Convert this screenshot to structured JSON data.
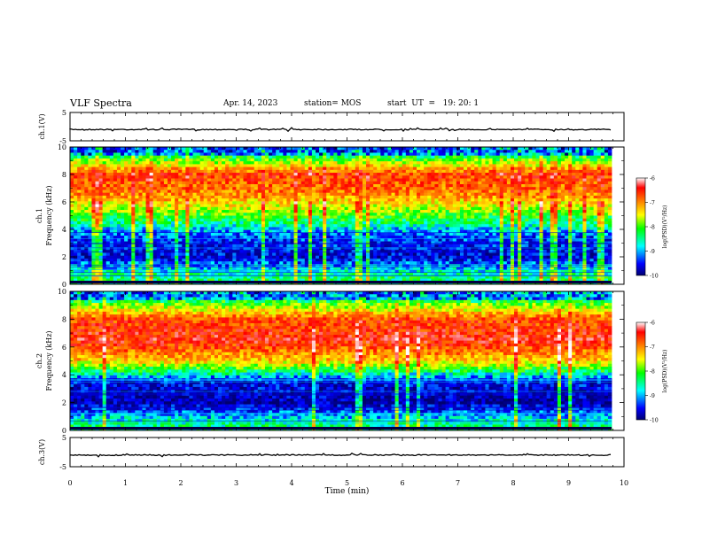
{
  "header": {
    "title": "VLF Spectra",
    "date": "Apr. 14, 2023",
    "station": "station= MOS",
    "start": "start  UT  =   19: 20: 1"
  },
  "chart_data": [
    {
      "type": "line",
      "panel": "ch1-waveform",
      "ylabel": "ch.1(V)",
      "ylim": [
        -5,
        5
      ],
      "yticks": [
        "5",
        "-5"
      ],
      "xlim": [
        0,
        10
      ],
      "baseline_value": -1,
      "grid": false
    },
    {
      "type": "heatmap",
      "panel": "ch1-spectrogram",
      "ylabel": "ch.1\nFrequency (kHz)",
      "ylim": [
        0,
        10
      ],
      "yticks": [
        "0",
        "2",
        "4",
        "6",
        "8",
        "10"
      ],
      "xlim": [
        0,
        9.8
      ],
      "colorbar": {
        "label": "log(PSD)(V²/Hz)",
        "range": [
          -10,
          -6
        ],
        "ticks": [
          "-6",
          "-7",
          "-8",
          "-9",
          "-10"
        ]
      },
      "intensity_profile": [
        {
          "freq_khz": 0.5,
          "level": -8.5
        },
        {
          "freq_khz": 2,
          "level": -9.6
        },
        {
          "freq_khz": 3.5,
          "level": -9.3
        },
        {
          "freq_khz": 5,
          "level": -8.2
        },
        {
          "freq_khz": 6.5,
          "level": -7.2
        },
        {
          "freq_khz": 8,
          "level": -6.8
        },
        {
          "freq_khz": 9.6,
          "level": -8.8
        }
      ]
    },
    {
      "type": "heatmap",
      "panel": "ch2-spectrogram",
      "ylabel": "ch.2\nFrequency (kHz)",
      "ylim": [
        0,
        10
      ],
      "yticks": [
        "0",
        "2",
        "4",
        "6",
        "8",
        "10"
      ],
      "xlim": [
        0,
        9.8
      ],
      "colorbar": {
        "label": "log(PSD)(V²/Hz)",
        "range": [
          -10,
          -6
        ],
        "ticks": [
          "-6",
          "-7",
          "-8",
          "-9",
          "-10"
        ]
      },
      "intensity_profile": [
        {
          "freq_khz": 0.5,
          "level": -8.6
        },
        {
          "freq_khz": 2,
          "level": -9.8
        },
        {
          "freq_khz": 3.5,
          "level": -9.5
        },
        {
          "freq_khz": 5,
          "level": -7.5
        },
        {
          "freq_khz": 6.5,
          "level": -6.6
        },
        {
          "freq_khz": 8,
          "level": -6.9
        },
        {
          "freq_khz": 9.6,
          "level": -8.7
        }
      ]
    },
    {
      "type": "line",
      "panel": "ch3-waveform",
      "ylabel": "ch.3(V)",
      "ylim": [
        -5,
        5
      ],
      "yticks": [
        "5",
        "-5"
      ],
      "xlim": [
        0,
        10
      ],
      "baseline_value": -1,
      "grid": false
    }
  ],
  "xaxis": {
    "label": "Time (min)",
    "ticks": [
      "0",
      "1",
      "2",
      "3",
      "4",
      "5",
      "6",
      "7",
      "8",
      "9",
      "10"
    ]
  },
  "colormap": [
    "#000070",
    "#0000ff",
    "#00ffff",
    "#00ff00",
    "#ffff00",
    "#ff8000",
    "#ff0000",
    "#ffffff"
  ]
}
